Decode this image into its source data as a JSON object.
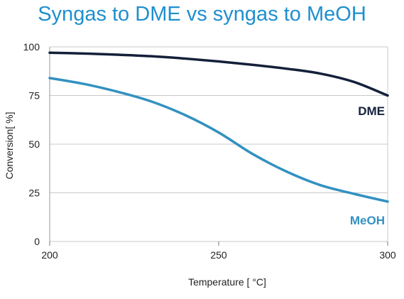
{
  "colors": {
    "title": "#1f8fcf",
    "dme": "#14203a",
    "meoh": "#3391c0",
    "grid": "#c8c8c8"
  },
  "chart_data": {
    "type": "line",
    "title": "Syngas to DME vs syngas to MeOH",
    "xlabel": "Temperature [ °C]",
    "ylabel": "Conversion[ %]",
    "xlim": [
      200,
      300
    ],
    "ylim": [
      0,
      100
    ],
    "xticks": [
      200,
      250,
      300
    ],
    "yticks": [
      0,
      25,
      50,
      75,
      100
    ],
    "grid": "horizontal",
    "series": [
      {
        "name": "DME",
        "x": [
          200,
          210,
          220,
          230,
          240,
          250,
          260,
          270,
          280,
          290,
          300
        ],
        "y": [
          97,
          96.6,
          96,
          95.2,
          94,
          92.5,
          90.8,
          88.8,
          86.3,
          82,
          75
        ]
      },
      {
        "name": "MeOH",
        "x": [
          200,
          210,
          220,
          230,
          240,
          250,
          260,
          270,
          280,
          290,
          300
        ],
        "y": [
          84,
          81,
          77,
          72,
          65,
          56,
          45,
          36,
          29,
          24.5,
          20.5
        ]
      }
    ]
  }
}
